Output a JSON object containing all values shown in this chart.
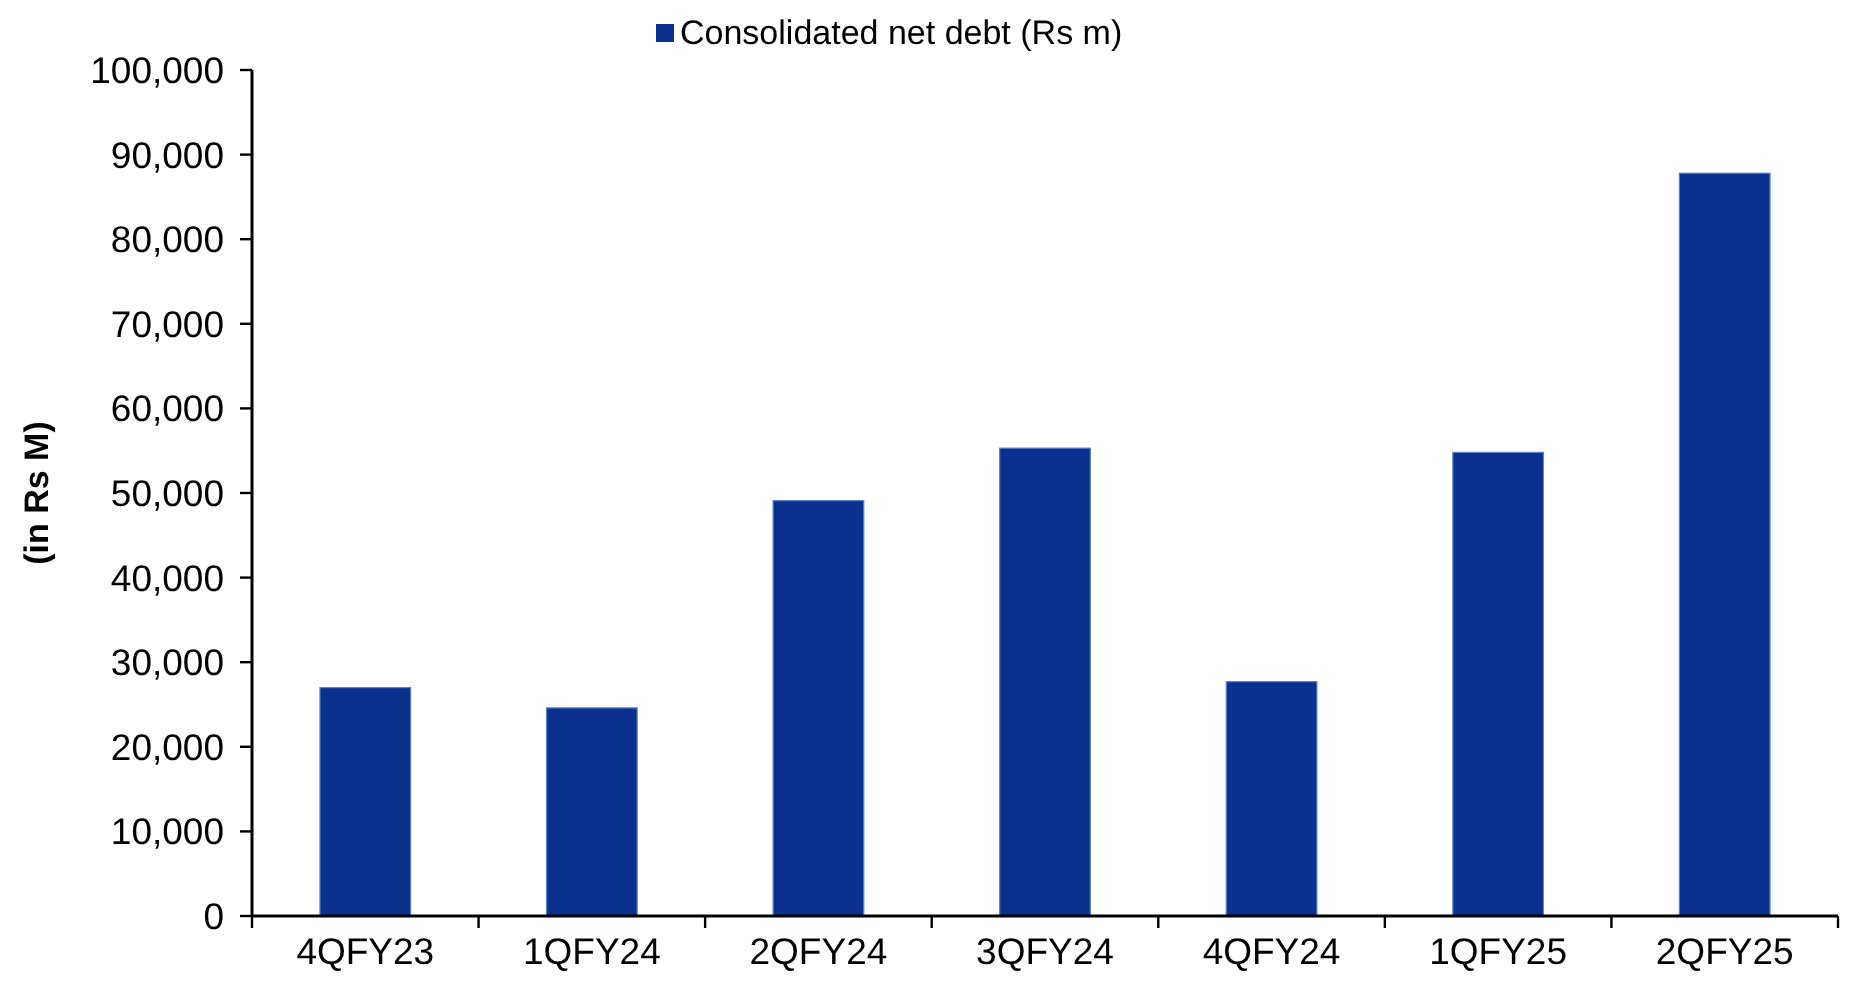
{
  "chart_data": {
    "type": "bar",
    "categories": [
      "4QFY23",
      "1QFY24",
      "2QFY24",
      "3QFY24",
      "4QFY24",
      "1QFY25",
      "2QFY25"
    ],
    "series": [
      {
        "name": "Consolidated net debt (Rs m)",
        "color": "#0b318f",
        "values": [
          27000,
          24600,
          49100,
          55300,
          27700,
          54800,
          87800
        ]
      }
    ],
    "ylabel": "(in Rs M)",
    "ylim": [
      0,
      100000
    ],
    "yticks": [
      0,
      {
        "value": 10000,
        "label": "10,000"
      },
      {
        "value": 20000,
        "label": "20,000"
      },
      {
        "value": 30000,
        "label": "30,000"
      },
      {
        "value": 40000,
        "label": "40,000"
      },
      {
        "value": 50000,
        "label": "50,000"
      },
      {
        "value": 60000,
        "label": "60,000"
      },
      {
        "value": 70000,
        "label": "70,000"
      },
      {
        "value": 80000,
        "label": "80,000"
      },
      {
        "value": 90000,
        "label": "90,000"
      },
      {
        "value": 100000,
        "label": "100,000"
      }
    ],
    "legend": "top"
  }
}
